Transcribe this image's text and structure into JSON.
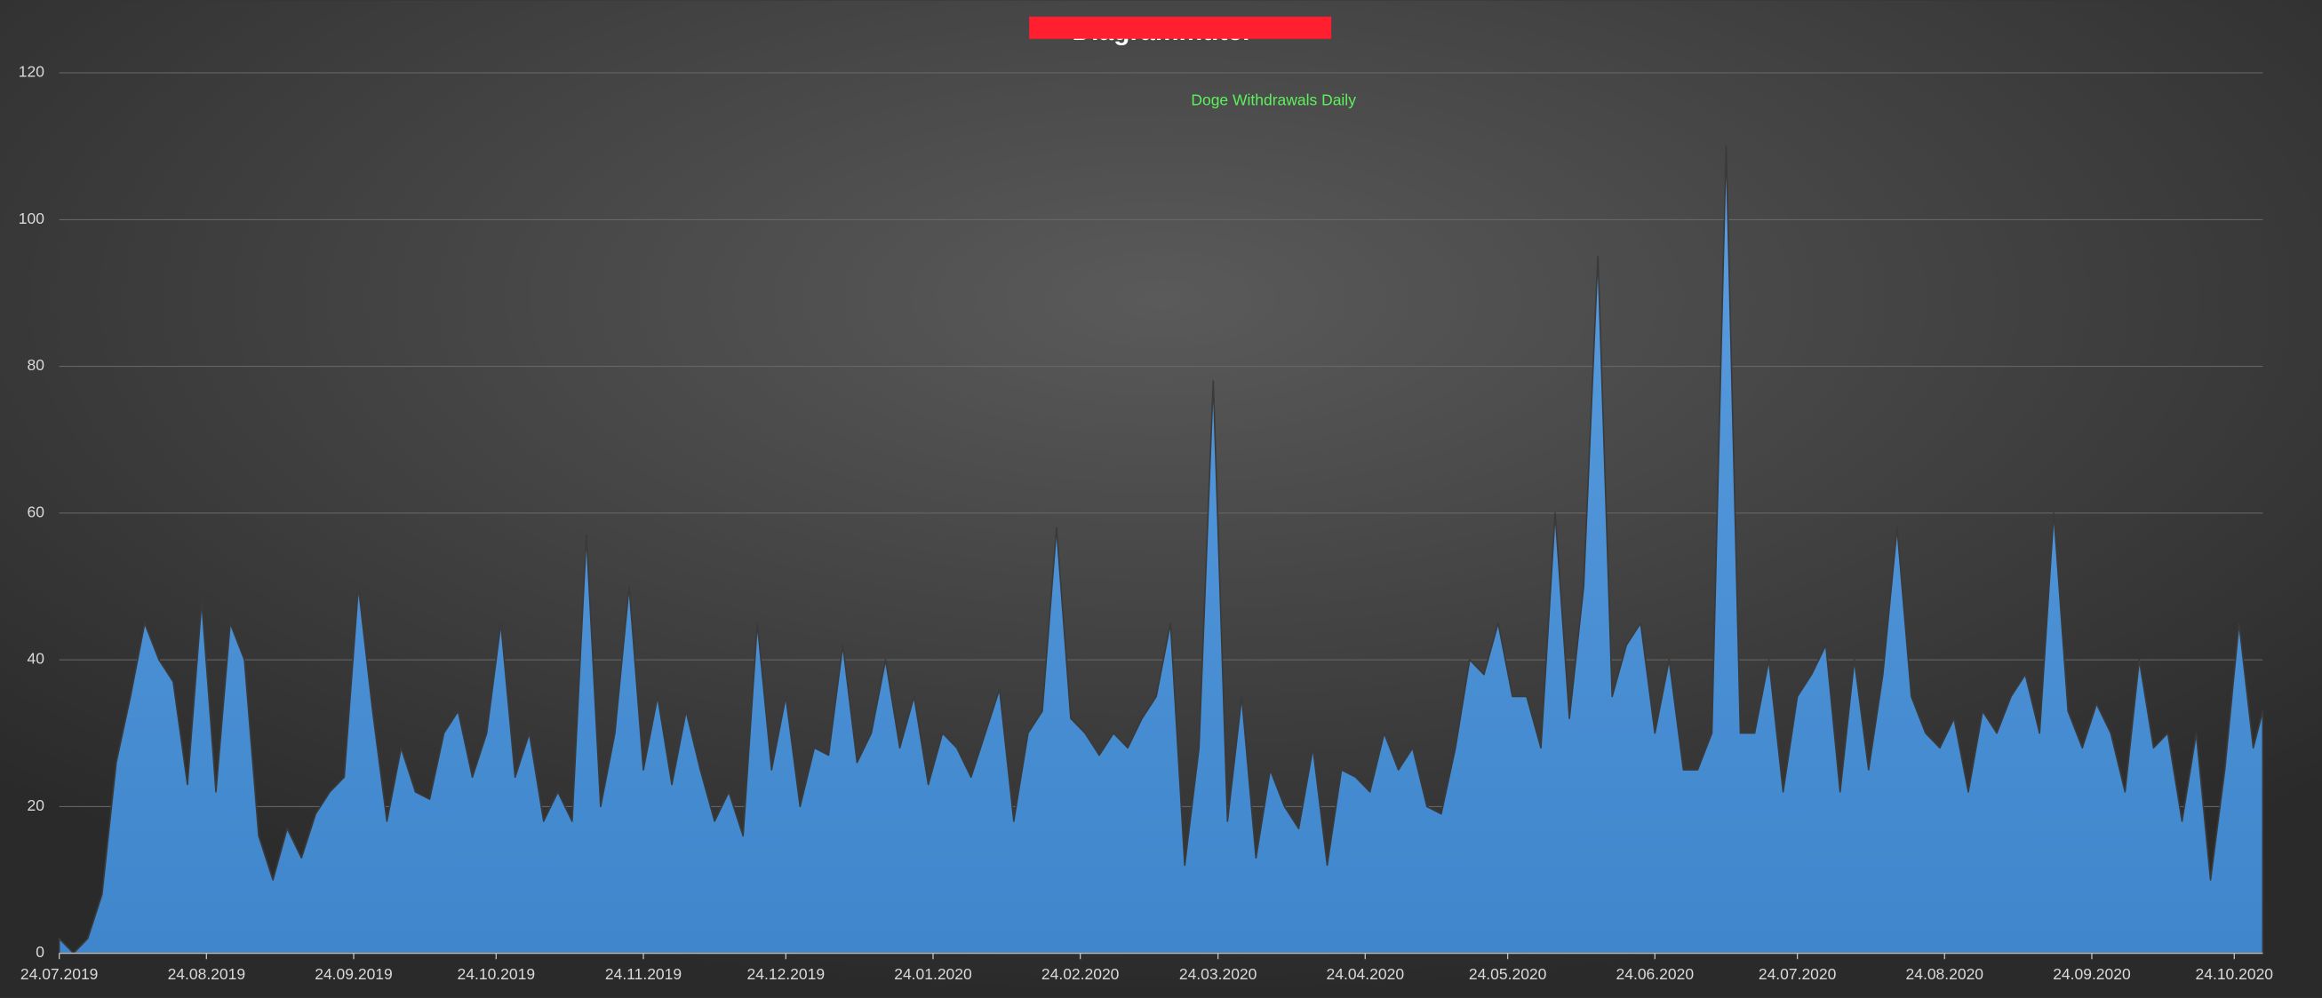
{
  "chart_data": {
    "type": "area",
    "title": "Diagrammtitel",
    "x": [
      "24.07.2019",
      "27.07.2019",
      "30.07.2019",
      "02.08.2019",
      "05.08.2019",
      "08.08.2019",
      "11.08.2019",
      "14.08.2019",
      "17.08.2019",
      "20.08.2019",
      "23.08.2019",
      "26.08.2019",
      "29.08.2019",
      "01.09.2019",
      "04.09.2019",
      "07.09.2019",
      "10.09.2019",
      "13.09.2019",
      "16.09.2019",
      "19.09.2019",
      "22.09.2019",
      "25.09.2019",
      "28.09.2019",
      "01.10.2019",
      "04.10.2019",
      "07.10.2019",
      "10.10.2019",
      "13.10.2019",
      "16.10.2019",
      "19.10.2019",
      "22.10.2019",
      "25.10.2019",
      "28.10.2019",
      "31.10.2019",
      "03.11.2019",
      "06.11.2019",
      "09.11.2019",
      "12.11.2019",
      "15.11.2019",
      "18.11.2019",
      "21.11.2019",
      "24.11.2019",
      "27.11.2019",
      "30.11.2019",
      "03.12.2019",
      "06.12.2019",
      "09.12.2019",
      "12.12.2019",
      "15.12.2019",
      "18.12.2019",
      "21.12.2019",
      "24.12.2019",
      "27.12.2019",
      "30.12.2019",
      "02.01.2020",
      "05.01.2020",
      "08.01.2020",
      "11.01.2020",
      "14.01.2020",
      "17.01.2020",
      "20.01.2020",
      "23.01.2020",
      "26.01.2020",
      "29.01.2020",
      "01.02.2020",
      "04.02.2020",
      "07.02.2020",
      "10.02.2020",
      "13.02.2020",
      "16.02.2020",
      "19.02.2020",
      "22.02.2020",
      "25.02.2020",
      "28.02.2020",
      "02.03.2020",
      "05.03.2020",
      "08.03.2020",
      "11.03.2020",
      "14.03.2020",
      "17.03.2020",
      "20.03.2020",
      "23.03.2020",
      "26.03.2020",
      "29.03.2020",
      "01.04.2020",
      "04.04.2020",
      "07.04.2020",
      "10.04.2020",
      "13.04.2020",
      "16.04.2020",
      "19.04.2020",
      "22.04.2020",
      "25.04.2020",
      "28.04.2020",
      "01.05.2020",
      "04.05.2020",
      "07.05.2020",
      "10.05.2020",
      "13.05.2020",
      "16.05.2020",
      "19.05.2020",
      "22.05.2020",
      "25.05.2020",
      "28.05.2020",
      "31.05.2020",
      "03.06.2020",
      "06.06.2020",
      "09.06.2020",
      "12.06.2020",
      "15.06.2020",
      "18.06.2020",
      "21.06.2020",
      "24.06.2020",
      "27.06.2020",
      "30.06.2020",
      "03.07.2020",
      "06.07.2020",
      "09.07.2020",
      "12.07.2020",
      "15.07.2020",
      "18.07.2020",
      "21.07.2020",
      "24.07.2020",
      "27.07.2020",
      "30.07.2020",
      "02.08.2020",
      "05.08.2020",
      "08.08.2020",
      "11.08.2020",
      "14.08.2020",
      "17.08.2020",
      "20.08.2020",
      "23.08.2020",
      "26.08.2020",
      "29.08.2020",
      "01.09.2020",
      "04.09.2020",
      "07.09.2020",
      "10.09.2020",
      "13.09.2020",
      "16.09.2020",
      "19.09.2020",
      "22.09.2020",
      "25.09.2020",
      "28.09.2020",
      "01.10.2020",
      "04.10.2020",
      "07.10.2020",
      "10.10.2020",
      "13.10.2020",
      "16.10.2020",
      "19.10.2020",
      "22.10.2020",
      "25.10.2020",
      "28.10.2020",
      "30.10.2020"
    ],
    "series": [
      {
        "name": "Doge Withdrawals Daily",
        "color": "#4a8fd4",
        "values": [
          2,
          0,
          2,
          8,
          26,
          35,
          45,
          40,
          37,
          23,
          48,
          22,
          45,
          40,
          16,
          10,
          17,
          13,
          19,
          22,
          24,
          50,
          33,
          18,
          28,
          22,
          21,
          30,
          33,
          24,
          30,
          45,
          24,
          30,
          18,
          22,
          18,
          57,
          20,
          30,
          50,
          25,
          35,
          23,
          33,
          25,
          18,
          22,
          16,
          45,
          25,
          35,
          20,
          28,
          27,
          42,
          26,
          30,
          40,
          28,
          35,
          23,
          30,
          28,
          24,
          30,
          36,
          18,
          30,
          33,
          58,
          32,
          30,
          27,
          30,
          28,
          32,
          35,
          45,
          12,
          28,
          78,
          18,
          35,
          13,
          25,
          20,
          17,
          28,
          12,
          25,
          24,
          22,
          30,
          25,
          28,
          20,
          19,
          28,
          40,
          38,
          45,
          35,
          35,
          28,
          60,
          32,
          50,
          95,
          35,
          42,
          45,
          30,
          40,
          25,
          25,
          30,
          110,
          30,
          30,
          40,
          22,
          35,
          38,
          42,
          22,
          40,
          25,
          38,
          58,
          35,
          30,
          28,
          32,
          22,
          33,
          30,
          35,
          38,
          30,
          60,
          33,
          28,
          34,
          30,
          22,
          40,
          28,
          30,
          18,
          30,
          10,
          25,
          45,
          28,
          33
        ]
      }
    ],
    "xlim": [
      "24.07.2019",
      "30.10.2020"
    ],
    "xticks": [
      "24.07.2019",
      "24.08.2019",
      "24.09.2019",
      "24.10.2019",
      "24.11.2019",
      "24.12.2019",
      "24.01.2020",
      "24.02.2020",
      "24.03.2020",
      "24.04.2020",
      "24.05.2020",
      "24.06.2020",
      "24.07.2020",
      "24.08.2020",
      "24.09.2020",
      "24.10.2020"
    ],
    "ylim": [
      0,
      120
    ],
    "yticks": [
      0,
      20,
      40,
      60,
      80,
      100,
      120
    ],
    "grid": true
  }
}
